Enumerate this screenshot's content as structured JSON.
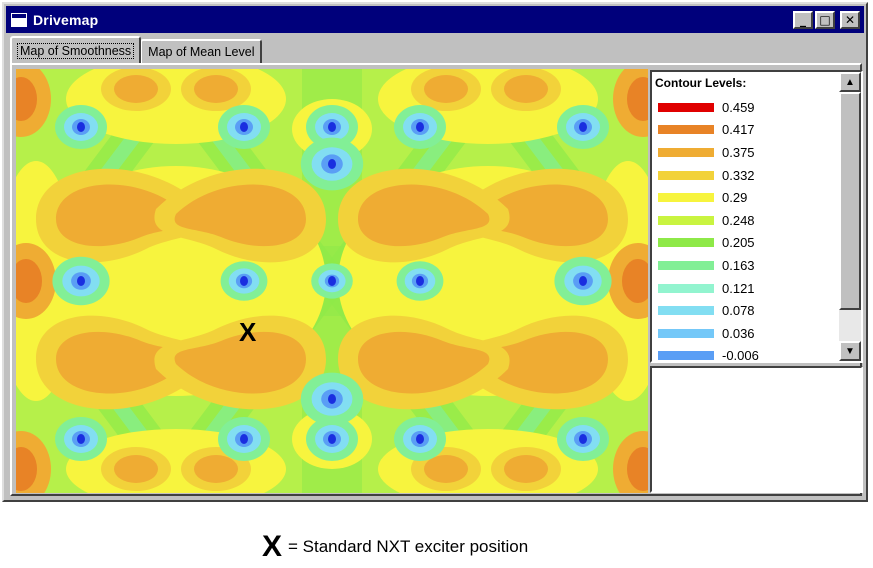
{
  "window": {
    "title": "Drivemap",
    "buttons": {
      "minimize": "_",
      "maximize": "□",
      "close": "✕"
    }
  },
  "tabs": [
    {
      "label": "Map of Smoothness",
      "active": true
    },
    {
      "label": "Map of Mean Level",
      "active": false
    }
  ],
  "legend": {
    "title": "Contour Levels:",
    "levels": [
      {
        "value": "0.459",
        "color": "#e00000"
      },
      {
        "value": "0.417",
        "color": "#e88326"
      },
      {
        "value": "0.375",
        "color": "#efac33"
      },
      {
        "value": "0.332",
        "color": "#f2d23a"
      },
      {
        "value": "0.29",
        "color": "#f7f43e"
      },
      {
        "value": "0.248",
        "color": "#c9f440"
      },
      {
        "value": "0.205",
        "color": "#8ee948"
      },
      {
        "value": "0.163",
        "color": "#82ef96"
      },
      {
        "value": "0.121",
        "color": "#92f4cf"
      },
      {
        "value": "0.078",
        "color": "#82def2"
      },
      {
        "value": "0.036",
        "color": "#74c8f8"
      },
      {
        "value": "-0.006",
        "color": "#5a9ef5"
      }
    ],
    "scroll": {
      "up_icon": "scroll-up-arrow",
      "down_icon": "scroll-down-arrow"
    }
  },
  "map": {
    "marker": "X",
    "colors": {
      "bg": "#b6f04a",
      "green": "#8ee948",
      "yellow": "#f7f43e",
      "gold": "#f2d23a",
      "orange": "#efac33",
      "dark_orange": "#e88326",
      "teal": "#82ef96",
      "cyan": "#82def2",
      "blue": "#5a9ef5",
      "dark_blue": "#1a2ee0"
    }
  },
  "caption": {
    "marker": "X",
    "text": "= Standard NXT exciter position"
  }
}
